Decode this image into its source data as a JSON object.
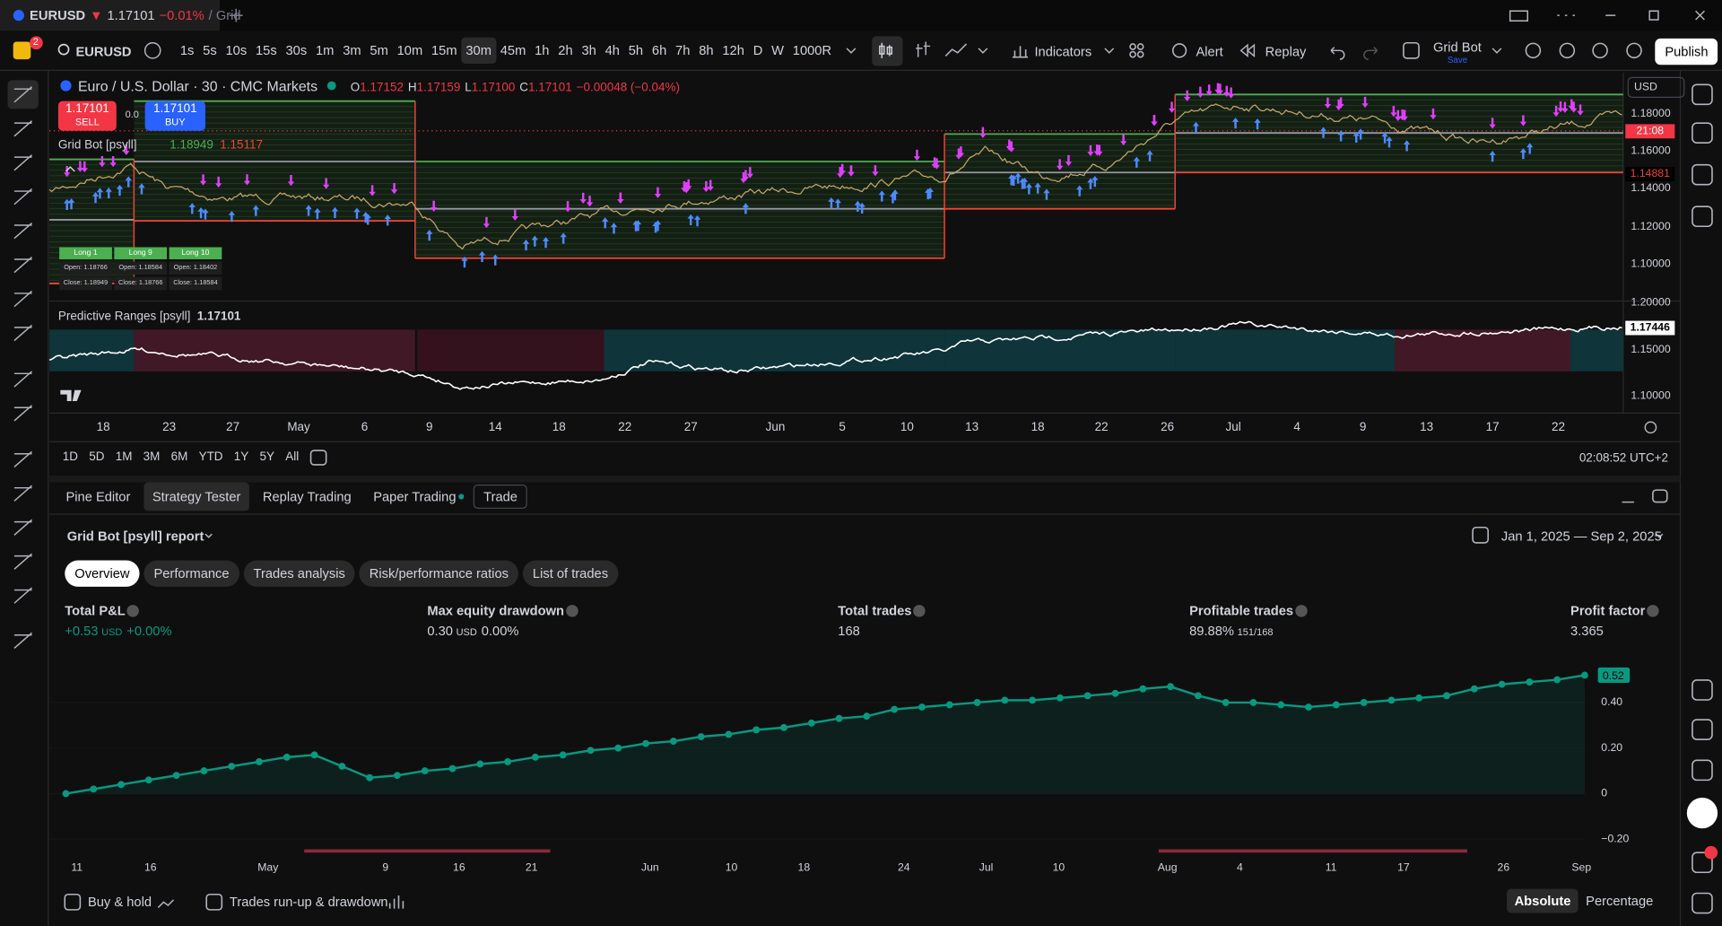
{
  "tab": {
    "symbol": "EURUSD",
    "arrow": "▼",
    "price": "1.17101",
    "change": "−0.01%",
    "suffix": "/ Grid"
  },
  "toolbar": {
    "badge": "2",
    "symbol": "EURUSD",
    "intervals": [
      "1s",
      "5s",
      "10s",
      "15s",
      "30s",
      "1m",
      "3m",
      "5m",
      "10m",
      "15m",
      "30m",
      "45m",
      "1h",
      "2h",
      "3h",
      "4h",
      "5h",
      "6h",
      "7h",
      "8h",
      "12h",
      "D",
      "W",
      "1000R"
    ],
    "indicators": "Indicators",
    "alert": "Alert",
    "replay": "Replay",
    "grid_bot": "Grid Bot",
    "save": "Save",
    "publish": "Publish"
  },
  "chart": {
    "title": "Euro / U.S. Dollar · 30 · CMC Markets",
    "ohlc": [
      {
        "k": "O",
        "v": "1.17152"
      },
      {
        "k": "H",
        "v": "1.17159"
      },
      {
        "k": "L",
        "v": "1.17100"
      },
      {
        "k": "C",
        "v": "1.17101"
      }
    ],
    "change": "−0.00048 (−0.04%)",
    "sell_price": "1.17101",
    "sell": "SELL",
    "spread": "0.0",
    "buy_price": "1.17101",
    "buy": "BUY",
    "indicator": "Grid Bot [psyll]",
    "indicator_values": [
      "1.18949",
      "1.15117"
    ],
    "currency": "USD",
    "price_axis": [
      "1.18000",
      "1.16000",
      "1.14000",
      "1.12000",
      "1.10000"
    ],
    "price_tags": [
      "21:08",
      "1.14881"
    ],
    "trade_boxes": [
      {
        "label": "Long 1",
        "open": "Open: 1.18766",
        "close": "Close: 1.18949"
      },
      {
        "label": "Long 9",
        "open": "Open: 1.18584",
        "close": "Close: 1.18766"
      },
      {
        "label": "Long 10",
        "open": "Open: 1.18402",
        "close": "Close: 1.18584"
      }
    ],
    "indicator2": "Predictive Ranges [psyll]",
    "indicator2_value": "1.17101",
    "axis2": [
      "1.20000",
      "1.15000",
      "1.10000"
    ],
    "indicator2_tag": "1.17446",
    "time_axis": [
      "18",
      "23",
      "27",
      "May",
      "6",
      "9",
      "14",
      "18",
      "22",
      "27",
      "Jun",
      "5",
      "10",
      "13",
      "18",
      "22",
      "26",
      "Jul",
      "4",
      "9",
      "13",
      "17",
      "22"
    ],
    "ranges": [
      "1D",
      "5D",
      "1M",
      "3M",
      "6M",
      "YTD",
      "1Y",
      "5Y",
      "All"
    ],
    "clock": "02:08:52 UTC+2"
  },
  "panel": {
    "tabs": [
      "Pine Editor",
      "Strategy Tester",
      "Replay Trading",
      "Paper Trading",
      "Trade"
    ],
    "report": "Grid Bot [psyll] report",
    "date_range": "Jan 1, 2025 — Sep 2, 2025",
    "subtabs": [
      "Overview",
      "Performance",
      "Trades analysis",
      "Risk/performance ratios",
      "List of trades"
    ],
    "metrics": [
      {
        "label": "Total P&L",
        "value": "+0.53",
        "unit": "USD",
        "extra": "+0.00%"
      },
      {
        "label": "Max equity drawdown",
        "value": "0.30",
        "unit": "USD",
        "extra": "0.00%"
      },
      {
        "label": "Total trades",
        "value": "168"
      },
      {
        "label": "Profitable trades",
        "value": "89.88%",
        "extra": "151/168"
      },
      {
        "label": "Profit factor",
        "value": "3.365"
      }
    ],
    "buy_hold": "Buy & hold",
    "runup": "Trades run-up & drawdown",
    "absolute": "Absolute",
    "percentage": "Percentage"
  },
  "chart_data": {
    "type": "line",
    "color": "#089981",
    "values": [
      0.0,
      0.02,
      0.04,
      0.06,
      0.08,
      0.1,
      0.12,
      0.14,
      0.16,
      0.17,
      0.12,
      0.07,
      0.08,
      0.1,
      0.11,
      0.13,
      0.14,
      0.16,
      0.17,
      0.19,
      0.2,
      0.22,
      0.23,
      0.25,
      0.26,
      0.28,
      0.29,
      0.31,
      0.33,
      0.34,
      0.37,
      0.38,
      0.39,
      0.4,
      0.41,
      0.41,
      0.42,
      0.43,
      0.44,
      0.46,
      0.47,
      0.43,
      0.4,
      0.4,
      0.39,
      0.38,
      0.39,
      0.4,
      0.41,
      0.42,
      0.43,
      0.46,
      0.48,
      0.49,
      0.5,
      0.52
    ],
    "ylim": [
      -0.23,
      0.59
    ],
    "yticks": [
      {
        "value": 0.4,
        "label": "0.40"
      },
      {
        "value": 0.2,
        "label": "0.20"
      },
      0,
      {
        "value": -0.2,
        "label": "−0.20"
      }
    ],
    "x_axis_labels": [
      "11",
      "16",
      "May",
      "9",
      "16",
      "21",
      "Jun",
      "10",
      "18",
      "24",
      "Jul",
      "10",
      "Aug",
      "4",
      "11",
      "17",
      "26",
      "Sep"
    ]
  }
}
